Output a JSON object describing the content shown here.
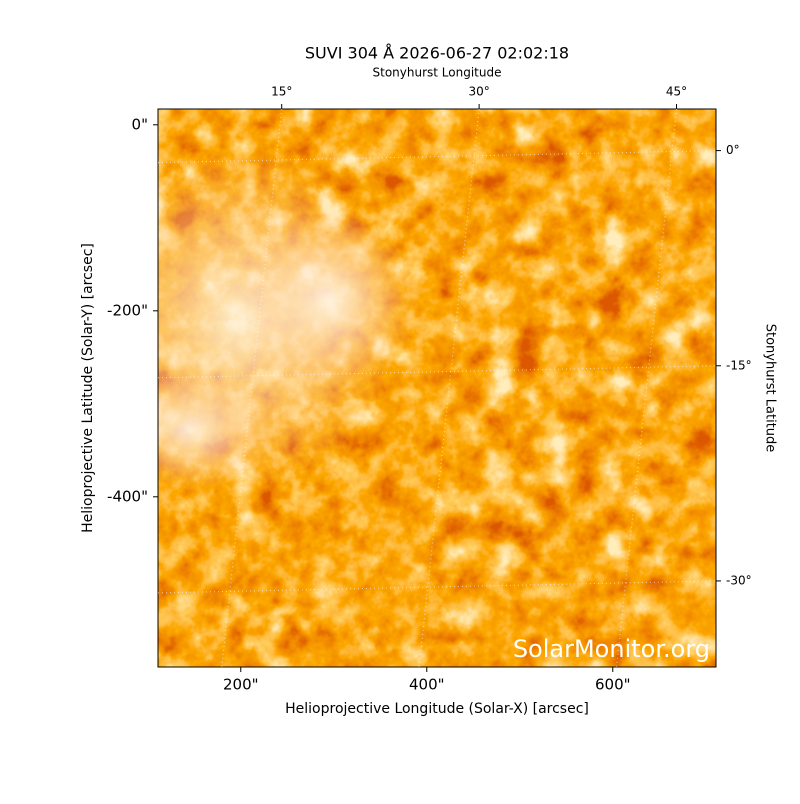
{
  "chart_data": {
    "type": "image",
    "title": "SUVI 304 Å 2026-06-27 02:02:18",
    "xlabel": "Helioprojective Longitude (Solar-X) [arcsec]",
    "ylabel": "Helioprojective Latitude (Solar-Y) [arcsec]",
    "x2label": "Stonyhurst Longitude",
    "y2label": "Stonyhurst Latitude",
    "annotation": "SolarMonitor.org",
    "xlim": [
      111,
      711
    ],
    "ylim": [
      -583,
      17
    ],
    "xticks": [
      {
        "value": 200,
        "label": "200\""
      },
      {
        "value": 400,
        "label": "400\""
      },
      {
        "value": 600,
        "label": "600\""
      }
    ],
    "yticks": [
      {
        "value": 0,
        "label": "0\""
      },
      {
        "value": -200,
        "label": "-200\""
      },
      {
        "value": -400,
        "label": "-400\""
      }
    ],
    "x2lim": [
      5.6,
      48
    ],
    "x2ticks": [
      {
        "value": 15,
        "label": "15°"
      },
      {
        "value": 30,
        "label": "30°"
      },
      {
        "value": 45,
        "label": "45°"
      }
    ],
    "y2lim": [
      -36,
      2.9
    ],
    "y2ticks": [
      {
        "value": 0,
        "label": "0°"
      },
      {
        "value": -15,
        "label": "-15°"
      },
      {
        "value": -30,
        "label": "-30°"
      }
    ],
    "grid": true
  }
}
